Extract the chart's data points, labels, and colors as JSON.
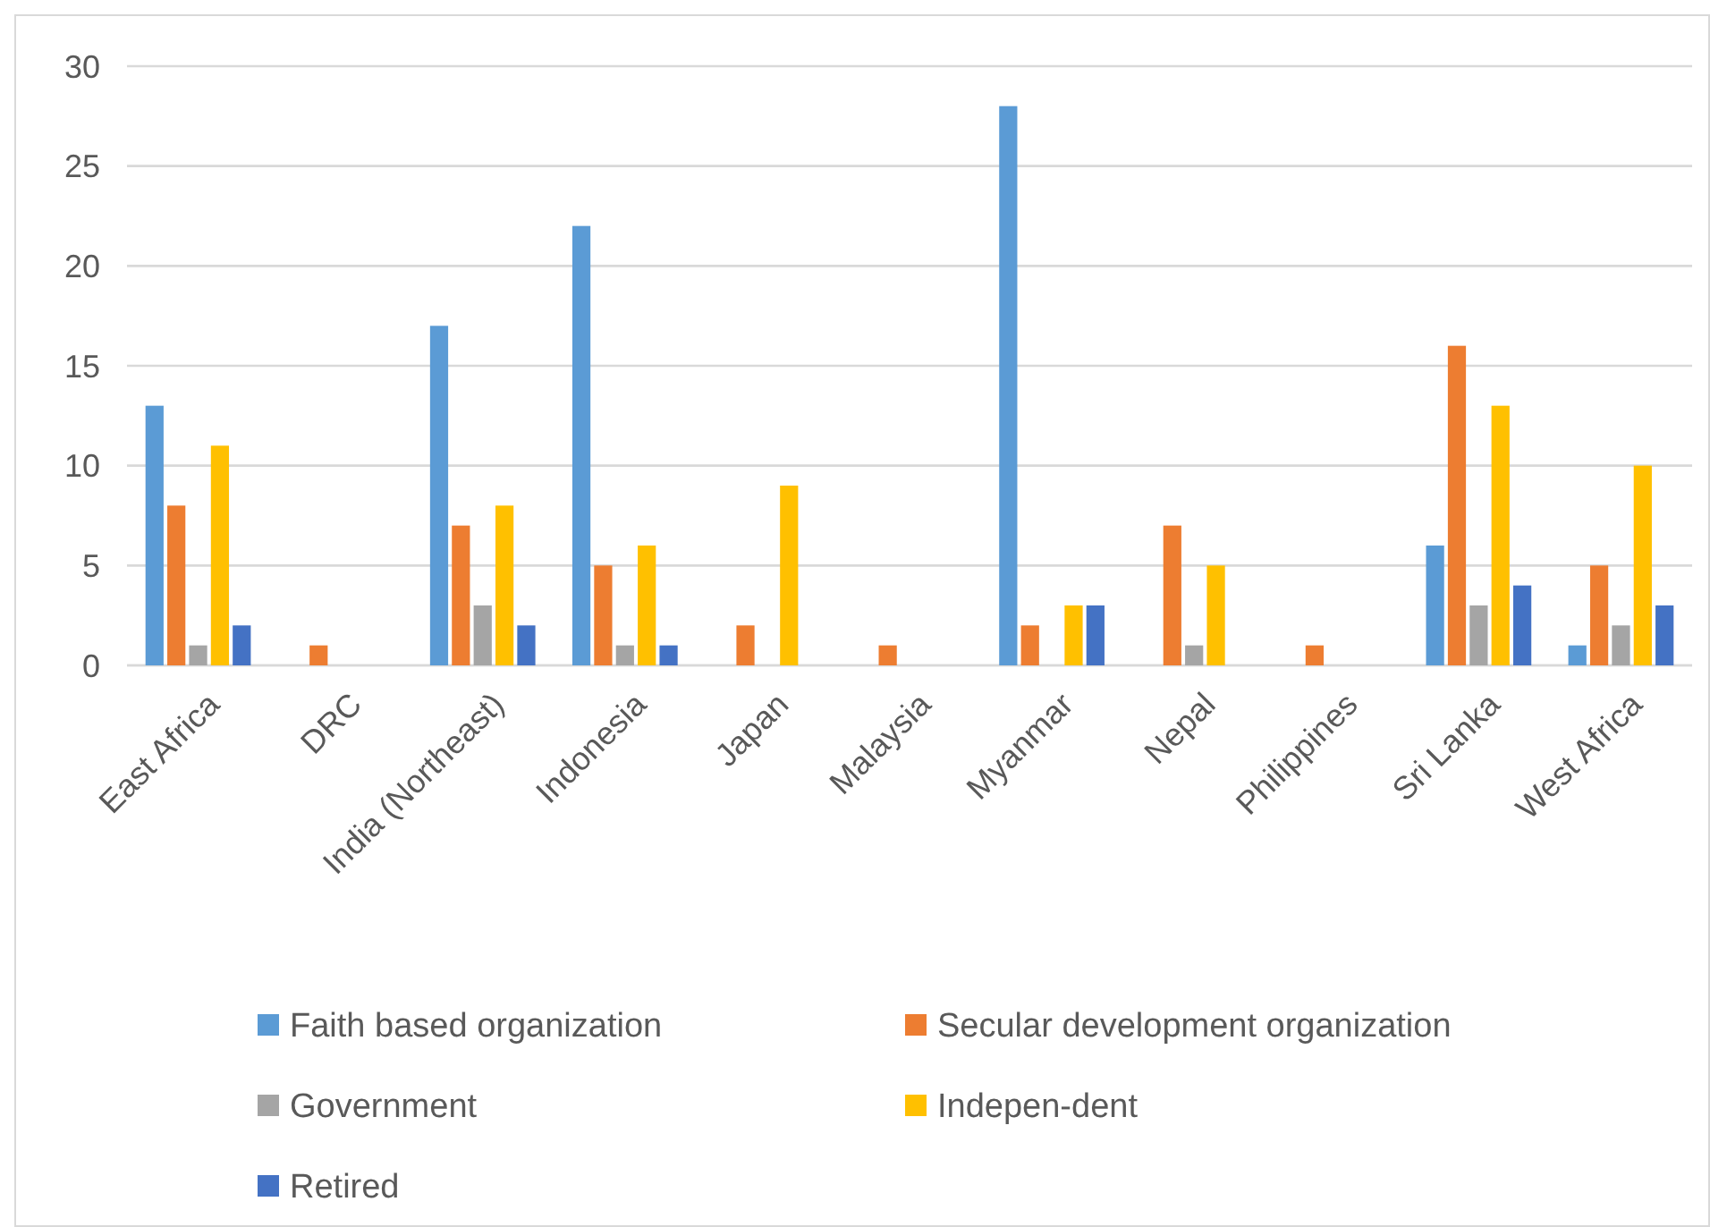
{
  "chart_data": {
    "type": "bar",
    "categories": [
      "East Africa",
      "DRC",
      "India (Northeast)",
      "Indonesia",
      "Japan",
      "Malaysia",
      "Myanmar",
      "Nepal",
      "Philippines",
      "Sri Lanka",
      "West Africa"
    ],
    "series": [
      {
        "name": "Faith based organization",
        "color": "#5b9bd5",
        "values": [
          13,
          0,
          17,
          22,
          0,
          0,
          28,
          0,
          0,
          6,
          1
        ]
      },
      {
        "name": "Secular development organization",
        "color": "#ed7d31",
        "values": [
          8,
          1,
          7,
          5,
          2,
          1,
          2,
          7,
          1,
          16,
          5
        ]
      },
      {
        "name": "Government",
        "color": "#a5a5a5",
        "values": [
          1,
          0,
          3,
          1,
          0,
          0,
          0,
          1,
          0,
          3,
          2
        ]
      },
      {
        "name": "Indepen-dent",
        "color": "#ffc000",
        "values": [
          11,
          0,
          8,
          6,
          9,
          0,
          3,
          5,
          0,
          13,
          10
        ]
      },
      {
        "name": "Retired",
        "color": "#4472c4",
        "values": [
          2,
          0,
          2,
          1,
          0,
          0,
          3,
          0,
          0,
          4,
          3
        ]
      }
    ],
    "ylim": [
      0,
      30
    ],
    "yticks": [
      0,
      5,
      10,
      15,
      20,
      25,
      30
    ],
    "grid": "y",
    "legend": "bottom"
  }
}
